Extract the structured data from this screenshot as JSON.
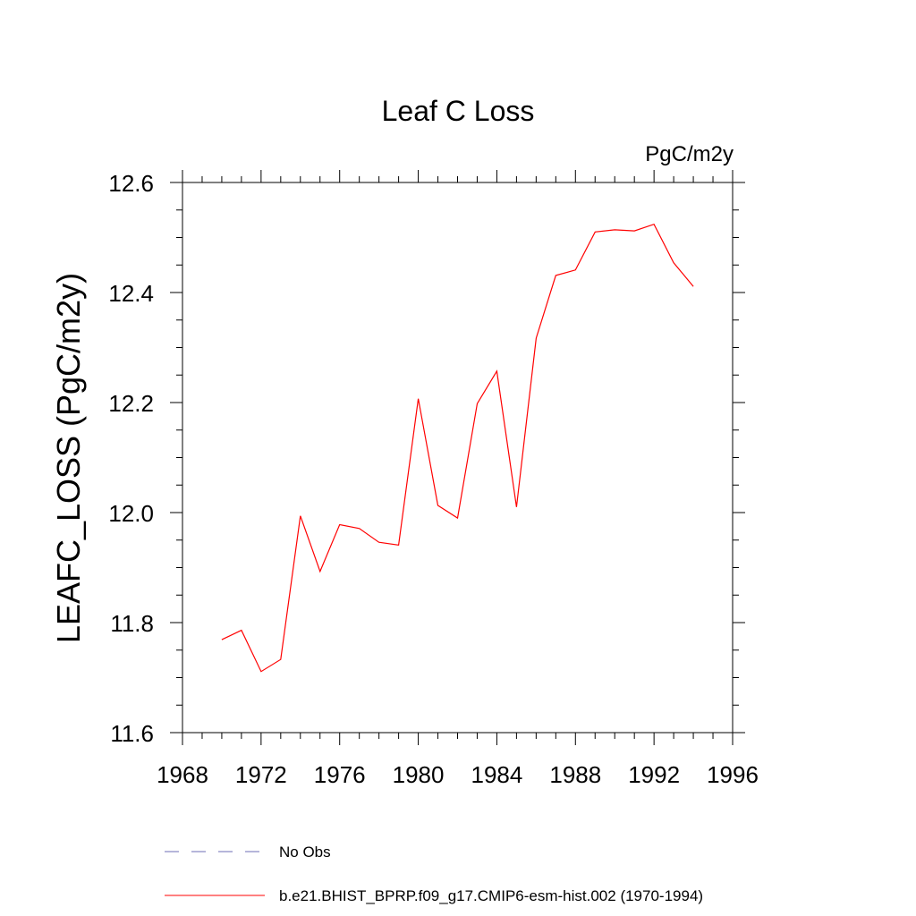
{
  "chart_data": {
    "type": "line",
    "title": "Leaf C Loss",
    "units": "PgC/m2y",
    "ylabel": "LEAFC_LOSS  (PgC/m2y)",
    "xlabel": "",
    "xlim": [
      1968,
      1996
    ],
    "ylim": [
      11.6,
      12.6
    ],
    "x_ticks": [
      1968,
      1972,
      1976,
      1980,
      1984,
      1988,
      1992,
      1996
    ],
    "x_tick_labels": [
      "1968",
      "1972",
      "1976",
      "1980",
      "1984",
      "1988",
      "1992",
      "1996"
    ],
    "y_ticks": [
      11.6,
      11.8,
      12.0,
      12.2,
      12.4,
      12.6
    ],
    "y_tick_labels": [
      "11.6",
      "11.8",
      "12.0",
      "12.2",
      "12.4",
      "12.6"
    ],
    "grid": false,
    "legend_position": "bottom",
    "series": [
      {
        "name": "b.e21.BHIST_BPRP.f09_g17.CMIP6-esm-hist.002 (1970-1994)",
        "color": "#ff0000",
        "style": "solid",
        "x": [
          1970,
          1971,
          1972,
          1973,
          1974,
          1975,
          1976,
          1977,
          1978,
          1979,
          1980,
          1981,
          1982,
          1983,
          1984,
          1985,
          1986,
          1987,
          1988,
          1989,
          1990,
          1991,
          1992,
          1993,
          1994
        ],
        "y": [
          11.769,
          11.786,
          11.711,
          11.733,
          11.994,
          11.893,
          11.978,
          11.971,
          11.946,
          11.941,
          12.207,
          12.013,
          11.99,
          12.198,
          12.257,
          12.01,
          12.317,
          12.431,
          12.441,
          12.51,
          12.514,
          12.512,
          12.524,
          12.454,
          12.411
        ]
      }
    ],
    "legend": [
      {
        "label": "No Obs",
        "color": "#6e6eb4",
        "style": "dashed"
      },
      {
        "label": "b.e21.BHIST_BPRP.f09_g17.CMIP6-esm-hist.002 (1970-1994)",
        "color": "#ff0000",
        "style": "solid"
      }
    ]
  }
}
